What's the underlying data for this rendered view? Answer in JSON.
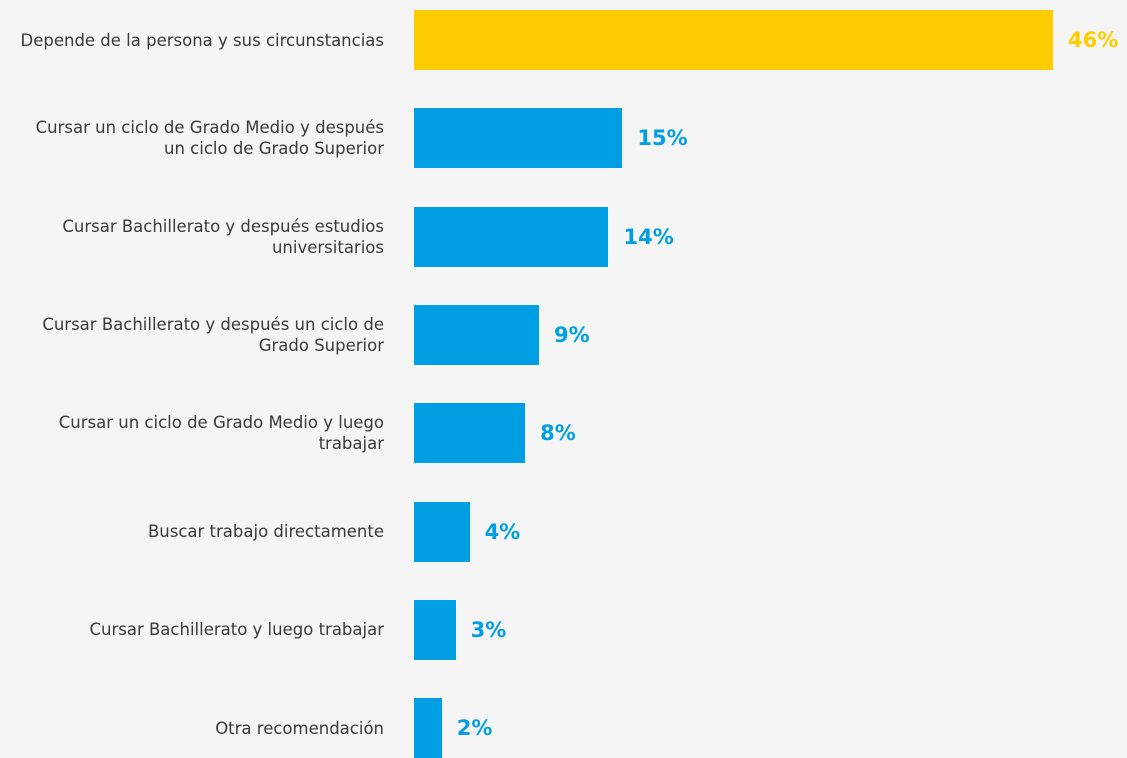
{
  "chart_data": {
    "type": "bar",
    "orientation": "horizontal",
    "categories": [
      "Depende de la persona y sus circunstancias",
      "Cursar un ciclo de Grado Medio y después un ciclo de Grado Superior",
      "Cursar Bachillerato y después estudios universitarios",
      "Cursar Bachillerato y después un ciclo de Grado Superior",
      "Cursar un ciclo de Grado Medio y luego trabajar",
      "Buscar trabajo directamente",
      "Cursar Bachillerato y luego trabajar",
      "Otra recomendación"
    ],
    "values": [
      46,
      15,
      14,
      9,
      8,
      4,
      3,
      2
    ],
    "value_labels": [
      "46%",
      "15%",
      "14%",
      "9%",
      "8%",
      "4%",
      "3%",
      "2%"
    ],
    "colors": [
      "#ffcc00",
      "#009fe3",
      "#009fe3",
      "#009fe3",
      "#009fe3",
      "#009fe3",
      "#009fe3",
      "#009fe3"
    ]
  }
}
